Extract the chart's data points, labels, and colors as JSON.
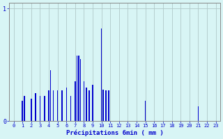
{
  "xlabel": "Précipitations 6min ( mm )",
  "background_color": "#d8f5f5",
  "bar_color": "#0000cc",
  "grid_color": "#b0c8c8",
  "axis_color": "#888888",
  "text_color": "#0000cc",
  "ylim": [
    0,
    1.05
  ],
  "xlim": [
    -0.5,
    23.5
  ],
  "yticks": [
    0,
    1
  ],
  "xtick_labels": [
    "0",
    "1",
    "2",
    "3",
    "4",
    "5",
    "6",
    "7",
    "8",
    "9",
    "10",
    "11",
    "12",
    "13",
    "14",
    "15",
    "16",
    "17",
    "18",
    "19",
    "20",
    "21",
    "22",
    "23"
  ],
  "bar_width": 0.12,
  "bars": [
    [
      1.0,
      0.18
    ],
    [
      1.2,
      0.22
    ],
    [
      2.0,
      0.2
    ],
    [
      2.5,
      0.25
    ],
    [
      3.0,
      0.22
    ],
    [
      3.5,
      0.22
    ],
    [
      4.0,
      0.27
    ],
    [
      4.2,
      0.45
    ],
    [
      4.5,
      0.27
    ],
    [
      5.0,
      0.27
    ],
    [
      5.5,
      0.27
    ],
    [
      6.0,
      0.3
    ],
    [
      6.5,
      0.22
    ],
    [
      7.0,
      0.35
    ],
    [
      7.2,
      0.58
    ],
    [
      7.4,
      0.58
    ],
    [
      7.6,
      0.55
    ],
    [
      8.0,
      0.35
    ],
    [
      8.3,
      0.3
    ],
    [
      8.6,
      0.27
    ],
    [
      9.0,
      0.32
    ],
    [
      10.0,
      0.82
    ],
    [
      10.2,
      0.28
    ],
    [
      10.5,
      0.27
    ],
    [
      10.8,
      0.27
    ],
    [
      15.0,
      0.18
    ],
    [
      21.0,
      0.13
    ]
  ]
}
